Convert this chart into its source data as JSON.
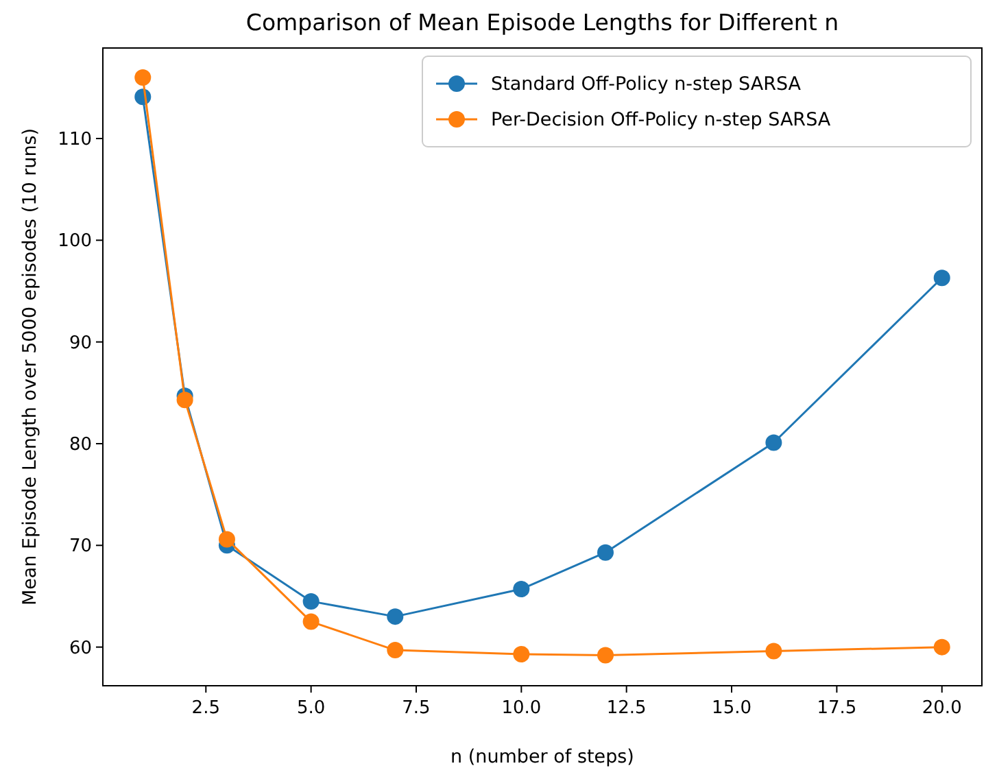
{
  "chart_data": {
    "type": "line",
    "title": "Comparison of Mean Episode Lengths for Different n",
    "xlabel": "n (number of steps)",
    "ylabel": "Mean Episode Length over 5000 episodes (10 runs)",
    "x": [
      1,
      2,
      3,
      5,
      7,
      10,
      12,
      16,
      20
    ],
    "series": [
      {
        "name": "Standard Off-Policy n-step SARSA",
        "color": "#1f77b4",
        "values": [
          114.1,
          84.7,
          70.0,
          64.5,
          63.0,
          65.7,
          69.3,
          80.1,
          96.3
        ]
      },
      {
        "name": "Per-Decision Off-Policy n-step SARSA",
        "color": "#ff7f0e",
        "values": [
          116.0,
          84.3,
          70.6,
          62.5,
          59.7,
          59.3,
          59.2,
          59.6,
          60.0
        ]
      }
    ],
    "xlim": [
      0.05,
      20.95
    ],
    "xticks": [
      {
        "value": 2.5,
        "label": "2.5"
      },
      {
        "value": 5,
        "label": "5.0"
      },
      {
        "value": 7.5,
        "label": "7.5"
      },
      {
        "value": 10,
        "label": "10.0"
      },
      {
        "value": 12.5,
        "label": "12.5"
      },
      {
        "value": 15,
        "label": "15.0"
      },
      {
        "value": 17.5,
        "label": "17.5"
      },
      {
        "value": 20,
        "label": "20.0"
      }
    ],
    "ylim": [
      56.2,
      118.9
    ],
    "yticks": [
      60,
      70,
      80,
      90,
      100,
      110
    ],
    "legend": "top right",
    "marker": "circle",
    "line_style": "solid",
    "grid": false
  }
}
